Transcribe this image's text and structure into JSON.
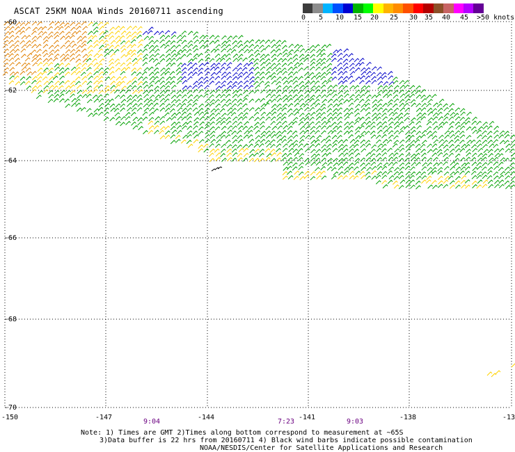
{
  "title": "ASCAT 25KM NOAA Winds 20160711 ascending",
  "legend": {
    "colors": [
      "#3c3c3c",
      "#8c8c8c",
      "#00b4ff",
      "#0050ff",
      "#0000d2",
      "#00b400",
      "#00ff00",
      "#ffff00",
      "#ffb400",
      "#ff8c00",
      "#ff5000",
      "#ff0000",
      "#b40000",
      "#8c5028",
      "#c86464",
      "#ff00ff",
      "#b400ff",
      "#640096"
    ],
    "labels": [
      "0",
      "5",
      "10",
      "15",
      "20",
      "25",
      "30",
      "35",
      "40",
      "45",
      ">50 knots"
    ]
  },
  "map": {
    "latitude_labels": [
      "-60",
      "-62",
      "-64",
      "-66",
      "-68",
      "-70"
    ],
    "longitude_labels": [
      "-150",
      "-147",
      "-144",
      "-141",
      "-138",
      "-13"
    ],
    "time_labels": [
      "9:04",
      "7:23",
      "9:03"
    ],
    "time_color": "#6a0080",
    "barb_colors": {
      "light": "#00a000",
      "moderate": "#ffd200",
      "strong": "#e08000",
      "very_strong": "#0000c8",
      "contaminated": "#000000"
    }
  },
  "notes": {
    "line1": "Note: 1) Times are GMT 2)Times along bottom correspond to measurement at ~65S",
    "line2": "3)Data buffer is 22 hrs from 20160711 4) Black wind barbs indicate possible contamination",
    "line3": "NOAA/NESDIS/Center for Satellite Applications and Research"
  }
}
